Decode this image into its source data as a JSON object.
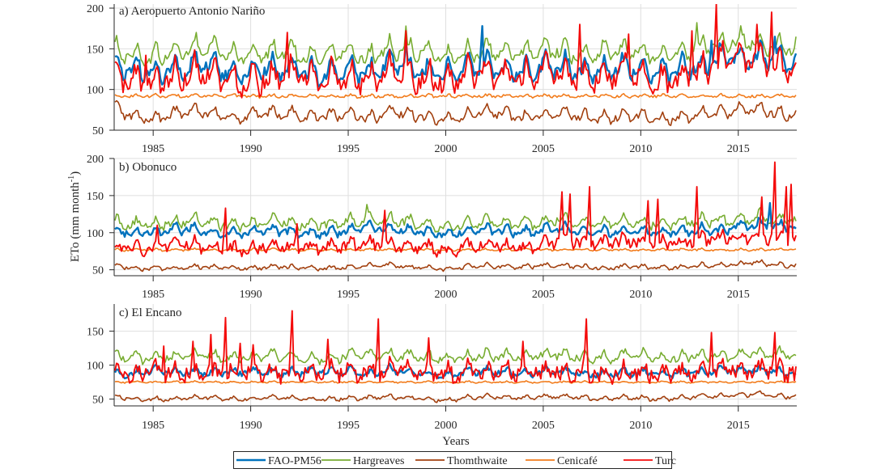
{
  "chart_data": {
    "type": "line",
    "figure_ylabel": "ETo (mm month",
    "figure_ylabel_superscript": "-1",
    "figure_ylabel_suffix": ")",
    "xlabel": "Years",
    "x_start": 1983.0,
    "x_end": 2018.0,
    "x_ticks": [
      1985,
      1990,
      1995,
      2000,
      2005,
      2010,
      2015
    ],
    "x_tick_labels": [
      "1985",
      "1990",
      "1995",
      "2000",
      "2005",
      "2010",
      "2015"
    ],
    "grid": true,
    "legend": {
      "placement": "bottom-center",
      "orientation": "horizontal",
      "entries": [
        "FAO-PM56",
        "Hargreaves",
        "Thomthwaite",
        "Cenicafé",
        "Turc"
      ]
    },
    "series_colors": {
      "FAO-PM56": "#0072BD",
      "Hargreaves": "#77AC30",
      "Thomthwaite": "#A2400F",
      "Cenicafé": "#F27C1C",
      "Turc": "#F40B0B"
    },
    "resolution": "monthly",
    "panels": [
      {
        "title": "a) Aeropuerto Antonio Nariño",
        "ylim": [
          50,
          205
        ],
        "y_ticks": [
          50,
          100,
          150,
          200
        ],
        "y_tick_labels": [
          "50",
          "100",
          "150",
          "200"
        ],
        "series": [
          {
            "name": "FAO-PM56",
            "annual_mean": [
              128,
              126,
              122,
              125,
              130,
              133,
              118,
              124,
              125,
              128,
              120,
              122,
              124,
              118,
              132,
              126,
              122,
              120,
              128,
              130,
              126,
              124,
              130,
              128,
              122,
              124,
              128,
              125,
              120,
              126,
              128,
              140,
              142,
              140,
              135
            ],
            "seasonal_amplitude": 14,
            "noise": 7,
            "spikes": [
              [
                1997.9,
                160
              ],
              [
                2001.8,
                178
              ],
              [
                2013.6,
                160
              ],
              [
                2016.8,
                165
              ]
            ]
          },
          {
            "name": "Hargreaves",
            "annual_mean": [
              148,
              142,
              140,
              146,
              150,
              152,
              140,
              146,
              145,
              148,
              140,
              144,
              146,
              138,
              150,
              148,
              146,
              138,
              146,
              148,
              144,
              146,
              150,
              148,
              142,
              146,
              148,
              146,
              140,
              146,
              150,
              158,
              160,
              158,
              152
            ],
            "seasonal_amplitude": 12,
            "noise": 6,
            "spikes": [
              [
                1987.2,
                170
              ],
              [
                1997.9,
                178
              ],
              [
                2012.8,
                182
              ],
              [
                2017.9,
                165
              ]
            ]
          },
          {
            "name": "Thomthwaite",
            "annual_mean": [
              78,
              66,
              64,
              70,
              74,
              72,
              64,
              68,
              72,
              70,
              66,
              68,
              70,
              64,
              74,
              70,
              66,
              62,
              68,
              72,
              70,
              66,
              70,
              72,
              66,
              64,
              68,
              68,
              62,
              66,
              70,
              72,
              76,
              76,
              70
            ],
            "seasonal_amplitude": 7,
            "noise": 4,
            "spikes": []
          },
          {
            "name": "Cenicafé",
            "annual_mean": [
              92,
              92,
              92,
              92,
              92,
              92,
              92,
              92,
              92,
              92,
              92,
              92,
              92,
              92,
              92,
              92,
              92,
              92,
              92,
              92,
              92,
              92,
              92,
              92,
              92,
              92,
              92,
              92,
              92,
              92,
              92,
              92,
              92,
              92,
              92
            ],
            "seasonal_amplitude": 1.5,
            "noise": 1.5,
            "spikes": []
          },
          {
            "name": "Turc",
            "annual_mean": [
              118,
              112,
              110,
              116,
              122,
              124,
              108,
              114,
              116,
              122,
              110,
              114,
              116,
              108,
              126,
              120,
              114,
              108,
              118,
              122,
              118,
              114,
              122,
              120,
              112,
              114,
              120,
              118,
              110,
              116,
              120,
              134,
              138,
              136,
              126
            ],
            "seasonal_amplitude": 16,
            "noise": 11,
            "spikes": [
              [
                1984.6,
                142
              ],
              [
                1991.8,
                170
              ],
              [
                1997.9,
                172
              ],
              [
                2006.8,
                180
              ],
              [
                2009.3,
                168
              ],
              [
                2012.6,
                172
              ],
              [
                2013.8,
                205
              ],
              [
                2016.7,
                195
              ],
              [
                2015.9,
                180
              ]
            ]
          }
        ]
      },
      {
        "title": "b) Obonuco",
        "ylim": [
          42,
          200
        ],
        "y_ticks": [
          50,
          100,
          150,
          200
        ],
        "y_tick_labels": [
          "50",
          "100",
          "150",
          "200"
        ],
        "series": [
          {
            "name": "FAO-PM56",
            "annual_mean": [
              104,
              100,
              102,
              104,
              106,
              100,
              98,
              102,
              104,
              102,
              100,
              100,
              104,
              108,
              106,
              104,
              100,
              98,
              102,
              104,
              102,
              100,
              104,
              106,
              102,
              100,
              104,
              102,
              100,
              102,
              104,
              104,
              108,
              112,
              108
            ],
            "seasonal_amplitude": 6,
            "noise": 4,
            "spikes": [
              [
                2016.6,
                140
              ]
            ]
          },
          {
            "name": "Hargreaves",
            "annual_mean": [
              116,
              110,
              112,
              114,
              118,
              114,
              110,
              112,
              116,
              114,
              112,
              112,
              116,
              118,
              118,
              116,
              112,
              108,
              112,
              116,
              114,
              112,
              116,
              118,
              114,
              112,
              116,
              114,
              112,
              114,
              116,
              116,
              118,
              122,
              118
            ],
            "seasonal_amplitude": 7,
            "noise": 5,
            "spikes": [
              [
                1995.9,
                138
              ]
            ]
          },
          {
            "name": "Thomthwaite",
            "annual_mean": [
              56,
              52,
              52,
              52,
              54,
              54,
              52,
              52,
              54,
              54,
              52,
              52,
              54,
              56,
              56,
              54,
              52,
              50,
              54,
              56,
              54,
              54,
              56,
              56,
              54,
              52,
              54,
              54,
              52,
              54,
              56,
              56,
              58,
              60,
              56
            ],
            "seasonal_amplitude": 2.5,
            "noise": 2,
            "spikes": []
          },
          {
            "name": "Cenicafé",
            "annual_mean": [
              77,
              77,
              77,
              77,
              77,
              77,
              77,
              77,
              77,
              77,
              77,
              77,
              77,
              77,
              77,
              77,
              77,
              77,
              77,
              77,
              77,
              77,
              77,
              77,
              77,
              77,
              77,
              77,
              77,
              77,
              77,
              77,
              77,
              77,
              77
            ],
            "seasonal_amplitude": 1.2,
            "noise": 1.2,
            "spikes": []
          },
          {
            "name": "Turc",
            "annual_mean": [
              82,
              78,
              80,
              82,
              84,
              82,
              78,
              80,
              82,
              82,
              80,
              80,
              84,
              86,
              84,
              82,
              80,
              76,
              80,
              84,
              82,
              80,
              86,
              90,
              88,
              86,
              90,
              88,
              86,
              88,
              90,
              92,
              94,
              96,
              92
            ],
            "seasonal_amplitude": 6,
            "noise": 7,
            "spikes": [
              [
                1985.2,
                110
              ],
              [
                1988.7,
                133
              ],
              [
                1992.3,
                112
              ],
              [
                1996.8,
                130
              ],
              [
                2005.9,
                155
              ],
              [
                2006.3,
                152
              ],
              [
                2007.3,
                162
              ],
              [
                2010.3,
                143
              ],
              [
                2010.8,
                145
              ],
              [
                2012.8,
                162
              ],
              [
                2016.2,
                148
              ],
              [
                2016.8,
                195
              ],
              [
                2017.4,
                162
              ],
              [
                2017.7,
                165
              ]
            ]
          }
        ]
      },
      {
        "title": "c) El Encano",
        "ylim": [
          40,
          190
        ],
        "y_ticks": [
          50,
          100,
          150
        ],
        "y_tick_labels": [
          "50",
          "100",
          "150"
        ],
        "series": [
          {
            "name": "FAO-PM56",
            "annual_mean": [
              86,
              88,
              92,
              90,
              90,
              88,
              90,
              92,
              90,
              88,
              92,
              90,
              92,
              88,
              94,
              92,
              88,
              86,
              90,
              92,
              90,
              88,
              92,
              90,
              88,
              86,
              90,
              90,
              86,
              88,
              90,
              92,
              92,
              94,
              90
            ],
            "seasonal_amplitude": 5,
            "noise": 4,
            "spikes": []
          },
          {
            "name": "Hargreaves",
            "annual_mean": [
              116,
              110,
              112,
              112,
              116,
              114,
              110,
              112,
              114,
              112,
              110,
              110,
              114,
              116,
              116,
              114,
              112,
              108,
              112,
              116,
              114,
              112,
              116,
              114,
              112,
              110,
              114,
              114,
              110,
              112,
              114,
              114,
              116,
              118,
              116
            ],
            "seasonal_amplitude": 7,
            "noise": 5,
            "spikes": []
          },
          {
            "name": "Thomthwaite",
            "annual_mean": [
              54,
              50,
              50,
              50,
              52,
              52,
              50,
              50,
              52,
              52,
              50,
              50,
              52,
              52,
              54,
              52,
              50,
              48,
              52,
              54,
              52,
              52,
              54,
              54,
              52,
              50,
              52,
              52,
              50,
              52,
              54,
              54,
              56,
              58,
              54
            ],
            "seasonal_amplitude": 3,
            "noise": 2,
            "spikes": []
          },
          {
            "name": "Cenicafé",
            "annual_mean": [
              75,
              75,
              75,
              75,
              75,
              75,
              75,
              75,
              75,
              75,
              75,
              75,
              75,
              75,
              75,
              75,
              75,
              75,
              75,
              75,
              75,
              75,
              75,
              75,
              75,
              75,
              75,
              75,
              75,
              75,
              75,
              75,
              75,
              75,
              75
            ],
            "seasonal_amplitude": 1,
            "noise": 1,
            "spikes": []
          },
          {
            "name": "Turc",
            "annual_mean": [
              86,
              86,
              90,
              88,
              90,
              88,
              90,
              92,
              90,
              88,
              92,
              90,
              92,
              88,
              94,
              92,
              88,
              86,
              90,
              92,
              90,
              88,
              92,
              90,
              88,
              86,
              90,
              90,
              86,
              88,
              90,
              92,
              92,
              94,
              90
            ],
            "seasonal_amplitude": 9,
            "noise": 11,
            "spikes": [
              [
                1985.5,
                128
              ],
              [
                1987.0,
                135
              ],
              [
                1987.9,
                145
              ],
              [
                1988.7,
                170
              ],
              [
                1989.4,
                132
              ],
              [
                1990.1,
                130
              ],
              [
                1992.1,
                180
              ],
              [
                1993.9,
                138
              ],
              [
                1996.5,
                168
              ],
              [
                1999.1,
                140
              ],
              [
                2003.9,
                135
              ],
              [
                2007.2,
                168
              ],
              [
                2013.6,
                148
              ],
              [
                2016.8,
                148
              ]
            ]
          }
        ]
      }
    ]
  }
}
